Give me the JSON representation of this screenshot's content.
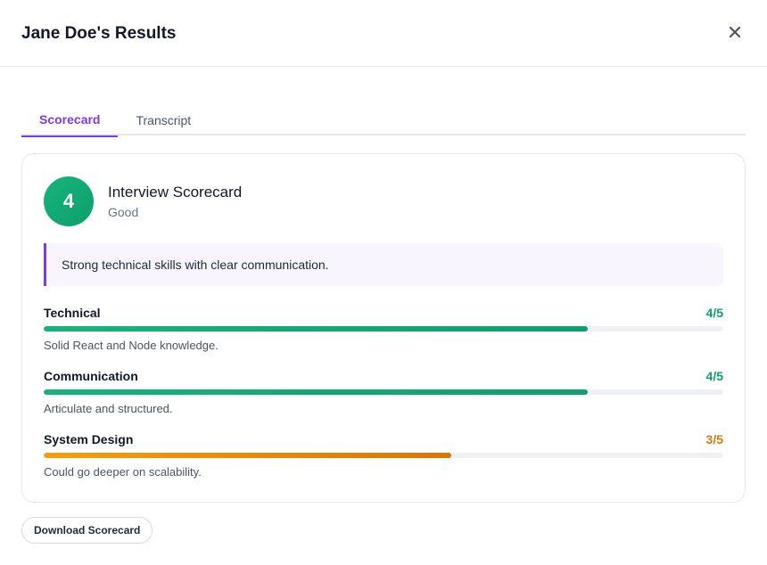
{
  "modal": {
    "title": "Jane Doe's Results"
  },
  "tabs": [
    {
      "label": "Scorecard",
      "active": true
    },
    {
      "label": "Transcript",
      "active": false
    }
  ],
  "scorecard": {
    "score": "4",
    "title": "Interview Scorecard",
    "rating": "Good",
    "summary": "Strong technical skills with clear communication.",
    "criteria": [
      {
        "name": "Technical",
        "score_label": "4/5",
        "score": 4,
        "max": 5,
        "note": "Solid React and Node knowledge.",
        "color": "#0e9f6e"
      },
      {
        "name": "Communication",
        "score_label": "4/5",
        "score": 4,
        "max": 5,
        "note": "Articulate and structured.",
        "color": "#0e9f6e"
      },
      {
        "name": "System Design",
        "score_label": "3/5",
        "score": 3,
        "max": 5,
        "note": "Could go deeper on scalability.",
        "color": "#d97706"
      }
    ]
  },
  "actions": {
    "download_label": "Download Scorecard"
  },
  "colors": {
    "accent": "#7c3aed",
    "success": "#0e9f6e",
    "warning": "#d97706"
  }
}
